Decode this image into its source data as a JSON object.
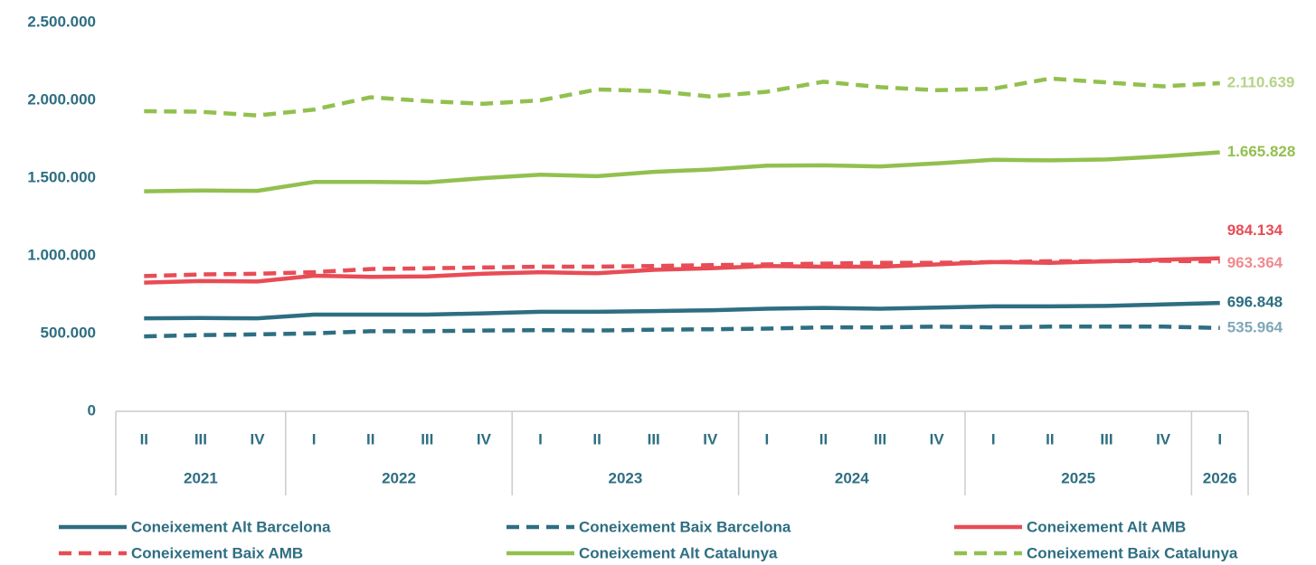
{
  "chart_data": {
    "type": "line",
    "categories": [
      "II",
      "III",
      "IV",
      "I",
      "II",
      "III",
      "IV",
      "I",
      "II",
      "III",
      "IV",
      "I",
      "II",
      "III",
      "IV",
      "I",
      "II",
      "III",
      "IV",
      "I"
    ],
    "year_groups": [
      {
        "label": "2021",
        "count": 3
      },
      {
        "label": "2022",
        "count": 4
      },
      {
        "label": "2023",
        "count": 4
      },
      {
        "label": "2024",
        "count": 4
      },
      {
        "label": "2025",
        "count": 4
      },
      {
        "label": "2026",
        "count": 1
      }
    ],
    "ylim": [
      0,
      2500000
    ],
    "yticks": [
      0,
      {
        "value": 500000,
        "label": "500.000"
      },
      {
        "value": 1000000,
        "label": "1.000.000"
      },
      {
        "value": 1500000,
        "label": "1.500.000"
      },
      {
        "value": 2000000,
        "label": "2.000.000"
      },
      {
        "value": 2500000,
        "label": "2.500.000"
      }
    ],
    "grid": false,
    "series": [
      {
        "name": "Coneixement Alt Barcelona",
        "color": "#2e6e82",
        "dash": false,
        "label_color": "#2e6e82",
        "end_label": "696.848",
        "values": [
          598000,
          600000,
          598000,
          622000,
          622000,
          622000,
          630000,
          640000,
          640000,
          645000,
          650000,
          660000,
          665000,
          660000,
          667000,
          675000,
          675000,
          678000,
          687000,
          696848
        ]
      },
      {
        "name": "Coneixement Baix Barcelona",
        "color": "#2e6e82",
        "dash": true,
        "label_color": "#7fa8b8",
        "end_label": "535.964",
        "values": [
          482000,
          490000,
          495000,
          502000,
          515000,
          515000,
          520000,
          522000,
          520000,
          525000,
          528000,
          532000,
          540000,
          540000,
          545000,
          540000,
          545000,
          545000,
          545000,
          535964
        ]
      },
      {
        "name": "Coneixement Alt AMB",
        "color": "#e84c55",
        "dash": false,
        "label_color": "#e84c55",
        "end_label": "984.134",
        "values": [
          828000,
          838000,
          835000,
          872000,
          865000,
          868000,
          885000,
          895000,
          888000,
          910000,
          920000,
          935000,
          930000,
          930000,
          945000,
          960000,
          955000,
          965000,
          975000,
          984134
        ]
      },
      {
        "name": "Coneixement Baix AMB",
        "color": "#e84c55",
        "dash": true,
        "label_color": "#f08a8f",
        "end_label": "963.364",
        "values": [
          870000,
          880000,
          885000,
          895000,
          915000,
          920000,
          925000,
          930000,
          930000,
          935000,
          940000,
          945000,
          950000,
          955000,
          955000,
          960000,
          965000,
          965000,
          968000,
          963364
        ]
      },
      {
        "name": "Coneixement Alt Catalunya",
        "color": "#92c04f",
        "dash": false,
        "label_color": "#92c04f",
        "end_label": "1.665.828",
        "values": [
          1415000,
          1420000,
          1418000,
          1475000,
          1475000,
          1472000,
          1500000,
          1522000,
          1512000,
          1540000,
          1555000,
          1580000,
          1582000,
          1575000,
          1595000,
          1618000,
          1614000,
          1620000,
          1640000,
          1665828
        ]
      },
      {
        "name": "Coneixement Baix Catalunya",
        "color": "#92c04f",
        "dash": true,
        "label_color": "#b5d38a",
        "end_label": "2.110.639",
        "values": [
          1930000,
          1927000,
          1903000,
          1940000,
          2020000,
          1995000,
          1978000,
          2000000,
          2070000,
          2060000,
          2025000,
          2055000,
          2120000,
          2085000,
          2065000,
          2075000,
          2140000,
          2115000,
          2090000,
          2110639
        ]
      }
    ]
  }
}
